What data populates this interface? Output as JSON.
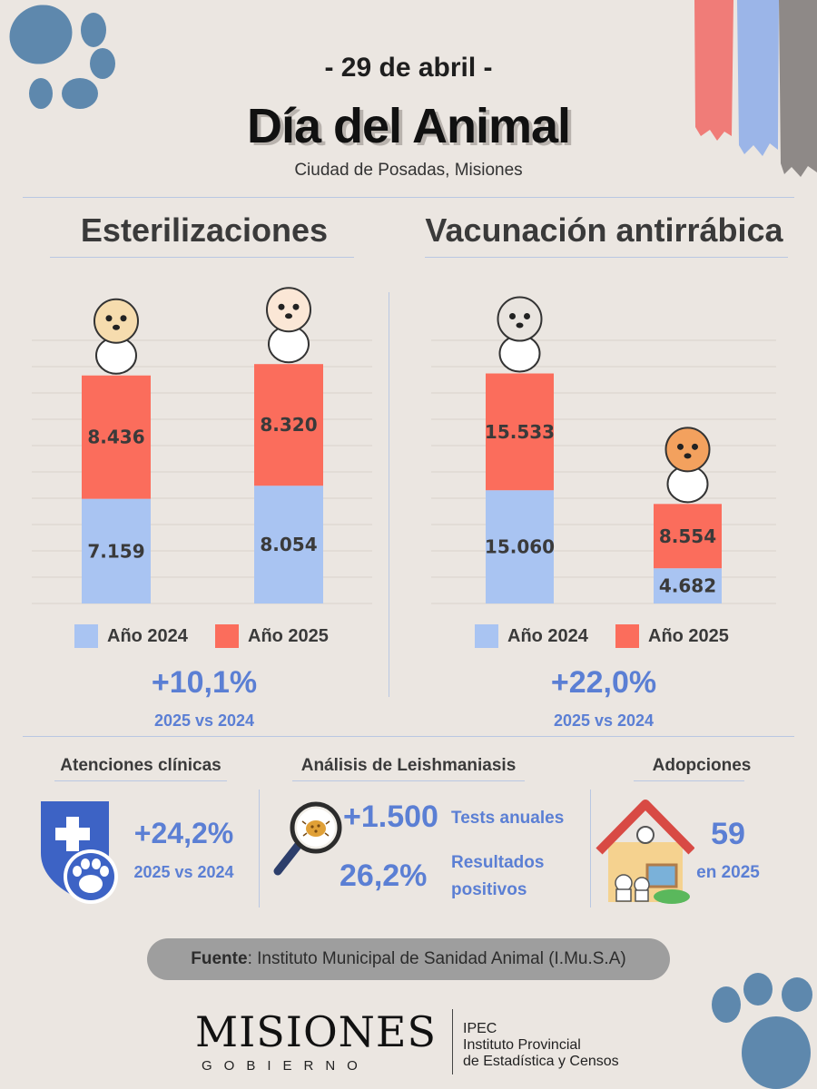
{
  "header": {
    "date": "- 29 de abril -",
    "title": "Día del Animal",
    "subtitle": "Ciudad de Posadas, Misiones"
  },
  "colors": {
    "year2024": "#a9c4f2",
    "year2025": "#fb6d5c",
    "accent": "#5b7fd4",
    "background": "#ebe6e1"
  },
  "chart_data": [
    {
      "type": "bar",
      "stacked": true,
      "title": "Esterilizaciones",
      "categories": [
        "",
        ""
      ],
      "series": [
        {
          "name": "Año 2024",
          "values": [
            7159,
            8054
          ],
          "labels": [
            "7.159",
            "8.054"
          ]
        },
        {
          "name": "Año 2025",
          "values": [
            8436,
            8320
          ],
          "labels": [
            "8.436",
            "8.320"
          ]
        }
      ],
      "ylim": [
        0,
        18000
      ],
      "grid": true,
      "legend": "bottom",
      "change": "+10,1%",
      "change_note": "2025 vs 2024"
    },
    {
      "type": "bar",
      "stacked": true,
      "title": "Vacunación antirrábica",
      "categories": [
        "",
        ""
      ],
      "series": [
        {
          "name": "Año 2024",
          "values": [
            15060,
            4682
          ],
          "labels": [
            "15.060",
            "4.682"
          ]
        },
        {
          "name": "Año 2025",
          "values": [
            15533,
            8554
          ],
          "labels": [
            "15.533",
            "8.554"
          ]
        }
      ],
      "ylim": [
        0,
        35000
      ],
      "grid": true,
      "legend": "bottom",
      "change": "+22,0%",
      "change_note": "2025 vs 2024"
    }
  ],
  "stats": {
    "clinical": {
      "title": "Atenciones clínicas",
      "value": "+24,2%",
      "note": "2025 vs 2024"
    },
    "leish": {
      "title": "Análisis de Leishmaniasis",
      "tests_value": "+1.500",
      "tests_label": "Tests anuales",
      "pos_value": "26,2%",
      "pos_label_1": "Resultados",
      "pos_label_2": "positivos"
    },
    "adoptions": {
      "title": "Adopciones",
      "value": "59",
      "note": "en 2025"
    }
  },
  "source": {
    "label": "Fuente",
    "text": ": Instituto Municipal de Sanidad Animal (I.Mu.S.A)"
  },
  "footer": {
    "logo": "MISIONES",
    "logo_sub": "GOBIERNO",
    "ipec_1": "IPEC",
    "ipec_2": "Instituto Provincial",
    "ipec_3": "de Estadística y Censos"
  }
}
